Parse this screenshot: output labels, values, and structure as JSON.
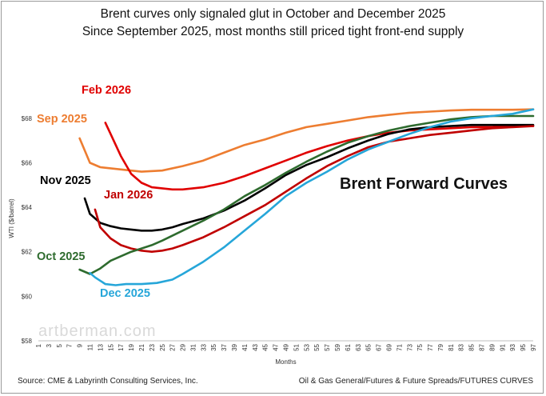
{
  "chart_data": {
    "type": "line",
    "title": "Brent curves only signaled glut in October and December 2025",
    "subtitle": "Since September 2025, most months still priced tight front-end supply",
    "xlabel": "Months",
    "ylabel": "WTI ($/barrel)",
    "annotation": "Brent Forward Curves",
    "watermark": "artberman.com",
    "xlim": [
      1,
      97
    ],
    "ylim": [
      58,
      69
    ],
    "x_ticks": [
      "1",
      "3",
      "5",
      "7",
      "9",
      "11",
      "13",
      "15",
      "17",
      "19",
      "21",
      "23",
      "25",
      "27",
      "29",
      "31",
      "33",
      "35",
      "37",
      "39",
      "41",
      "43",
      "45",
      "47",
      "49",
      "51",
      "53",
      "55",
      "57",
      "59",
      "61",
      "63",
      "65",
      "67",
      "69",
      "71",
      "73",
      "75",
      "77",
      "79",
      "81",
      "83",
      "85",
      "87",
      "89",
      "91",
      "93",
      "95",
      "97"
    ],
    "y_ticks": [
      {
        "value": 58,
        "label": "$58"
      },
      {
        "value": 60,
        "label": "$60"
      },
      {
        "value": 62,
        "label": "$62"
      },
      {
        "value": 64,
        "label": "$64"
      },
      {
        "value": 66,
        "label": "$66"
      },
      {
        "value": 68,
        "label": "$68"
      }
    ],
    "grid": false,
    "series": [
      {
        "name": "Sep 2025",
        "color": "#ed7d31",
        "x": [
          9,
          11,
          13,
          17,
          21,
          25,
          29,
          33,
          37,
          41,
          45,
          49,
          53,
          57,
          61,
          65,
          69,
          73,
          77,
          81,
          85,
          89,
          93,
          97
        ],
        "y": [
          67.1,
          66.0,
          65.8,
          65.7,
          65.6,
          65.65,
          65.85,
          66.1,
          66.45,
          66.8,
          67.05,
          67.35,
          67.6,
          67.75,
          67.9,
          68.05,
          68.15,
          68.25,
          68.3,
          68.35,
          68.38,
          68.38,
          68.38,
          68.4
        ]
      },
      {
        "name": "Feb 2026",
        "color": "#e00000",
        "x": [
          14,
          15,
          17,
          19,
          21,
          23,
          25,
          27,
          29,
          33,
          37,
          41,
          45,
          49,
          53,
          57,
          61,
          65,
          69,
          73,
          77,
          81,
          85,
          89,
          93,
          97
        ],
        "y": [
          67.8,
          67.3,
          66.3,
          65.5,
          65.1,
          64.9,
          64.85,
          64.8,
          64.8,
          64.9,
          65.1,
          65.4,
          65.75,
          66.1,
          66.45,
          66.75,
          67.0,
          67.2,
          67.35,
          67.45,
          67.5,
          67.55,
          67.6,
          67.6,
          67.65,
          67.65
        ]
      },
      {
        "name": "Nov 2025",
        "color": "#000000",
        "x": [
          10,
          11,
          13,
          15,
          17,
          19,
          21,
          23,
          25,
          27,
          29,
          33,
          37,
          41,
          45,
          49,
          53,
          57,
          61,
          65,
          69,
          73,
          77,
          81,
          85,
          89,
          93,
          97
        ],
        "y": [
          64.4,
          63.7,
          63.3,
          63.15,
          63.05,
          63.0,
          62.95,
          62.95,
          63.0,
          63.1,
          63.25,
          63.5,
          63.85,
          64.3,
          64.85,
          65.45,
          65.9,
          66.25,
          66.65,
          67.0,
          67.3,
          67.5,
          67.6,
          67.65,
          67.7,
          67.7,
          67.7,
          67.7
        ]
      },
      {
        "name": "Jan 2026",
        "color": "#c00000",
        "x": [
          12,
          13,
          15,
          17,
          19,
          21,
          23,
          25,
          27,
          29,
          33,
          37,
          41,
          45,
          49,
          53,
          57,
          61,
          65,
          69,
          73,
          77,
          81,
          85,
          89,
          93,
          97
        ],
        "y": [
          63.9,
          63.1,
          62.6,
          62.3,
          62.15,
          62.05,
          62.0,
          62.05,
          62.15,
          62.3,
          62.65,
          63.1,
          63.6,
          64.1,
          64.7,
          65.3,
          65.85,
          66.3,
          66.7,
          66.95,
          67.1,
          67.25,
          67.35,
          67.45,
          67.55,
          67.6,
          67.65
        ]
      },
      {
        "name": "Oct 2025",
        "color": "#2e6b2e",
        "x": [
          9,
          11,
          13,
          15,
          17,
          19,
          21,
          23,
          25,
          29,
          33,
          37,
          41,
          45,
          49,
          53,
          57,
          61,
          65,
          69,
          73,
          77,
          81,
          85,
          89,
          93,
          97
        ],
        "y": [
          61.2,
          61.0,
          61.25,
          61.6,
          61.8,
          62.0,
          62.15,
          62.3,
          62.5,
          62.95,
          63.4,
          63.9,
          64.5,
          65.0,
          65.55,
          66.05,
          66.5,
          66.9,
          67.2,
          67.45,
          67.65,
          67.8,
          67.95,
          68.05,
          68.1,
          68.1,
          68.1
        ]
      },
      {
        "name": "Dec 2025",
        "color": "#26a6d9",
        "x": [
          11,
          12,
          14,
          16,
          18,
          21,
          24,
          27,
          29,
          33,
          37,
          41,
          45,
          49,
          53,
          57,
          61,
          65,
          69,
          73,
          77,
          81,
          85,
          89,
          93,
          97
        ],
        "y": [
          61.05,
          60.85,
          60.55,
          60.5,
          60.55,
          60.55,
          60.6,
          60.75,
          61.0,
          61.55,
          62.2,
          62.95,
          63.7,
          64.5,
          65.1,
          65.6,
          66.15,
          66.6,
          66.95,
          67.3,
          67.6,
          67.85,
          68.0,
          68.1,
          68.2,
          68.4
        ]
      }
    ]
  },
  "footer": {
    "source": "Source: CME & Labyrinth Consulting Services, Inc.",
    "path": "Oil & Gas General/Futures & Future Spreads/FUTURES CURVES"
  }
}
